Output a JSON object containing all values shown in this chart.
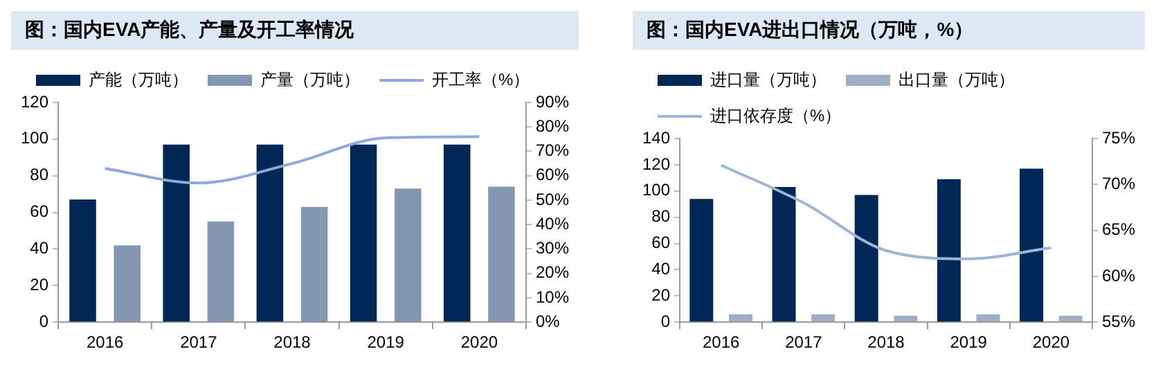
{
  "chart_data": [
    {
      "type": "bar",
      "title": "图：国内EVA产能、产量及开工率情况",
      "categories": [
        "2016",
        "2017",
        "2018",
        "2019",
        "2020"
      ],
      "series": [
        {
          "name": "产能（万吨）",
          "color": "#002755",
          "values": [
            67,
            97,
            97,
            97,
            97
          ]
        },
        {
          "name": "产量（万吨）",
          "color": "#8497b0",
          "values": [
            42,
            55,
            63,
            73,
            74
          ]
        },
        {
          "name": "开工率（%）",
          "type": "line",
          "axis": "y2",
          "color": "#8eaadc",
          "values": [
            63,
            57,
            65,
            75.5,
            76
          ]
        }
      ],
      "ylim": [
        0,
        120
      ],
      "yticks": [
        0,
        20,
        40,
        60,
        80,
        100,
        120
      ],
      "y2lim": [
        0,
        90
      ],
      "y2ticks": [
        {
          "value": 0,
          "label": "0%"
        },
        {
          "value": 10,
          "label": "10%"
        },
        {
          "value": 20,
          "label": "20%"
        },
        {
          "value": 30,
          "label": "30%"
        },
        {
          "value": 40,
          "label": "40%"
        },
        {
          "value": 50,
          "label": "50%"
        },
        {
          "value": 60,
          "label": "60%"
        },
        {
          "value": 70,
          "label": "70%"
        },
        {
          "value": 80,
          "label": "80%"
        },
        {
          "value": 90,
          "label": "90%"
        }
      ],
      "legend": "top",
      "marker": "none"
    },
    {
      "type": "bar",
      "title": "图：国内EVA进出口情况（万吨，%）",
      "categories": [
        "2016",
        "2017",
        "2018",
        "2019",
        "2020"
      ],
      "series": [
        {
          "name": "进口量（万吨）",
          "color": "#002755",
          "values": [
            94,
            103,
            97,
            109,
            117
          ]
        },
        {
          "name": "出口量（万吨）",
          "color": "#9eafc4",
          "values": [
            6,
            6,
            5,
            6,
            5
          ]
        },
        {
          "name": "进口依存度（%）",
          "type": "line",
          "axis": "y2",
          "color": "#9db6d6",
          "values": [
            72.1,
            68,
            62.8,
            61.9,
            63.1
          ]
        }
      ],
      "ylim": [
        0,
        140
      ],
      "yticks": [
        0,
        20,
        40,
        60,
        80,
        100,
        120,
        140
      ],
      "y2lim": [
        55,
        75
      ],
      "y2ticks": [
        {
          "value": 55,
          "label": "55%"
        },
        {
          "value": 60,
          "label": "60%"
        },
        {
          "value": 65,
          "label": "65%"
        },
        {
          "value": 70,
          "label": "70%"
        },
        {
          "value": 75,
          "label": "75%"
        }
      ],
      "legend": "top",
      "marker": "none"
    }
  ]
}
